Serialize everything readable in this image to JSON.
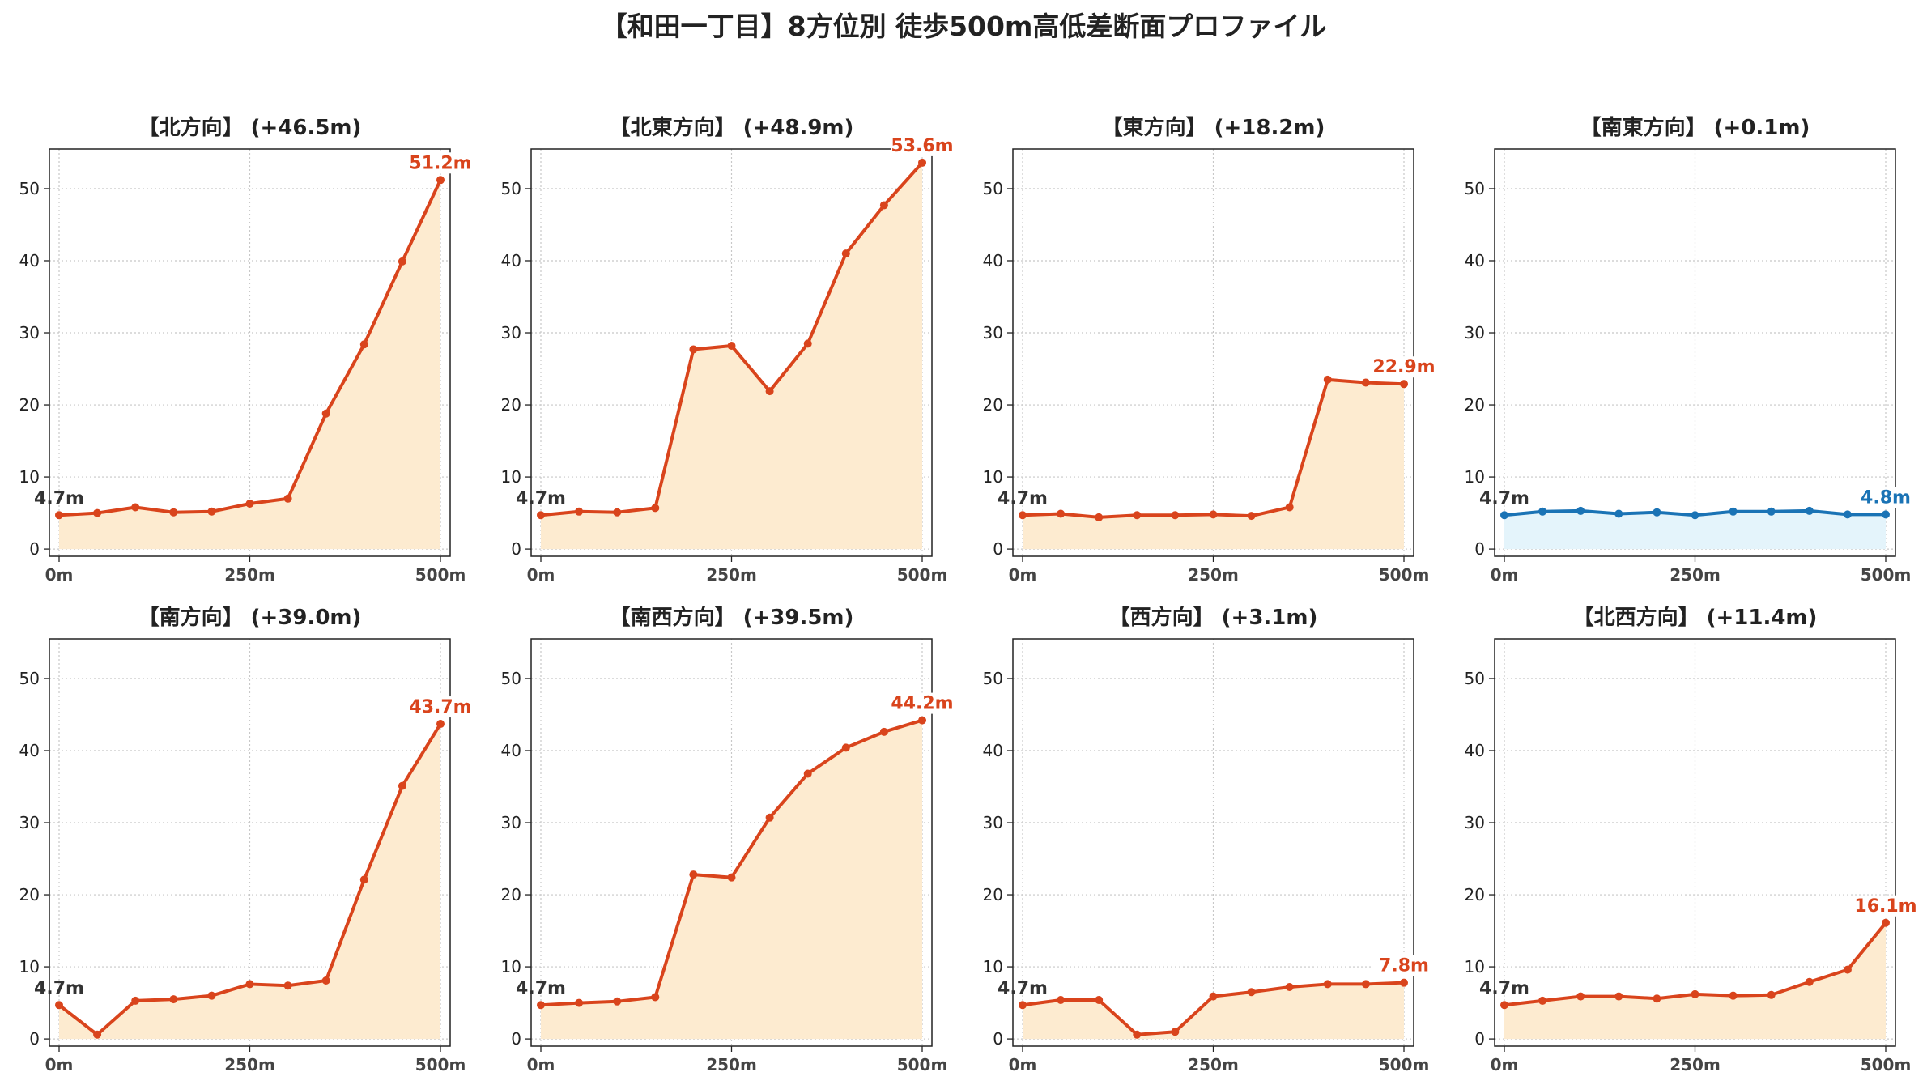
{
  "figure_title": "【和田一丁目】8方位別 徒歩500m高低差断面プロファイル",
  "colors": {
    "uphill_line": "#d9441c",
    "uphill_fill": "#fdebd0",
    "flat_line": "#1a73b5",
    "flat_fill": "#e4f4fb",
    "start_label": "#333333"
  },
  "chart_data": [
    {
      "type": "area",
      "title": "【北方向】 (+46.5m)",
      "x": [
        0,
        50,
        100,
        150,
        200,
        250,
        300,
        350,
        400,
        450,
        500
      ],
      "x_tick_labels": [
        "0m",
        "250m",
        "500m"
      ],
      "y_ticks": [
        0,
        10,
        20,
        30,
        40,
        50
      ],
      "ylim": [
        -1,
        55.5
      ],
      "grid": true,
      "style": "uphill",
      "values": [
        4.7,
        5.0,
        5.8,
        5.1,
        5.2,
        6.3,
        7.0,
        18.8,
        28.4,
        39.9,
        51.2
      ],
      "start_label": "4.7m",
      "end_label": "51.2m"
    },
    {
      "type": "area",
      "title": "【北東方向】 (+48.9m)",
      "x": [
        0,
        50,
        100,
        150,
        200,
        250,
        300,
        350,
        400,
        450,
        500
      ],
      "x_tick_labels": [
        "0m",
        "250m",
        "500m"
      ],
      "y_ticks": [
        0,
        10,
        20,
        30,
        40,
        50
      ],
      "ylim": [
        -1,
        55.5
      ],
      "grid": true,
      "style": "uphill",
      "values": [
        4.7,
        5.2,
        5.1,
        5.7,
        27.7,
        28.2,
        21.9,
        28.5,
        41.0,
        47.7,
        53.6
      ],
      "start_label": "4.7m",
      "end_label": "53.6m"
    },
    {
      "type": "area",
      "title": "【東方向】 (+18.2m)",
      "x": [
        0,
        50,
        100,
        150,
        200,
        250,
        300,
        350,
        400,
        450,
        500
      ],
      "x_tick_labels": [
        "0m",
        "250m",
        "500m"
      ],
      "y_ticks": [
        0,
        10,
        20,
        30,
        40,
        50
      ],
      "ylim": [
        -1,
        55.5
      ],
      "grid": true,
      "style": "uphill",
      "values": [
        4.7,
        4.9,
        4.4,
        4.7,
        4.7,
        4.8,
        4.6,
        5.8,
        23.5,
        23.1,
        22.9
      ],
      "start_label": "4.7m",
      "end_label": "22.9m"
    },
    {
      "type": "area",
      "title": "【南東方向】 (+0.1m)",
      "x": [
        0,
        50,
        100,
        150,
        200,
        250,
        300,
        350,
        400,
        450,
        500
      ],
      "x_tick_labels": [
        "0m",
        "250m",
        "500m"
      ],
      "y_ticks": [
        0,
        10,
        20,
        30,
        40,
        50
      ],
      "ylim": [
        -1,
        55.5
      ],
      "grid": true,
      "style": "flat",
      "values": [
        4.7,
        5.2,
        5.3,
        4.9,
        5.1,
        4.7,
        5.2,
        5.2,
        5.3,
        4.8,
        4.8
      ],
      "start_label": "4.7m",
      "end_label": "4.8m"
    },
    {
      "type": "area",
      "title": "【南方向】 (+39.0m)",
      "x": [
        0,
        50,
        100,
        150,
        200,
        250,
        300,
        350,
        400,
        450,
        500
      ],
      "x_tick_labels": [
        "0m",
        "250m",
        "500m"
      ],
      "y_ticks": [
        0,
        10,
        20,
        30,
        40,
        50
      ],
      "ylim": [
        -1,
        55.5
      ],
      "grid": true,
      "style": "uphill",
      "values": [
        4.7,
        0.6,
        5.3,
        5.5,
        6.0,
        7.6,
        7.4,
        8.1,
        22.1,
        35.1,
        43.7
      ],
      "start_label": "4.7m",
      "end_label": "43.7m"
    },
    {
      "type": "area",
      "title": "【南西方向】 (+39.5m)",
      "x": [
        0,
        50,
        100,
        150,
        200,
        250,
        300,
        350,
        400,
        450,
        500
      ],
      "x_tick_labels": [
        "0m",
        "250m",
        "500m"
      ],
      "y_ticks": [
        0,
        10,
        20,
        30,
        40,
        50
      ],
      "ylim": [
        -1,
        55.5
      ],
      "grid": true,
      "style": "uphill",
      "values": [
        4.7,
        5.0,
        5.2,
        5.8,
        22.8,
        22.4,
        30.7,
        36.8,
        40.4,
        42.6,
        44.2
      ],
      "start_label": "4.7m",
      "end_label": "44.2m"
    },
    {
      "type": "area",
      "title": "【西方向】 (+3.1m)",
      "x": [
        0,
        50,
        100,
        150,
        200,
        250,
        300,
        350,
        400,
        450,
        500
      ],
      "x_tick_labels": [
        "0m",
        "250m",
        "500m"
      ],
      "y_ticks": [
        0,
        10,
        20,
        30,
        40,
        50
      ],
      "ylim": [
        -1,
        55.5
      ],
      "grid": true,
      "style": "uphill",
      "values": [
        4.7,
        5.4,
        5.4,
        0.6,
        1.0,
        5.9,
        6.5,
        7.2,
        7.6,
        7.6,
        7.8
      ],
      "start_label": "4.7m",
      "end_label": "7.8m"
    },
    {
      "type": "area",
      "title": "【北西方向】 (+11.4m)",
      "x": [
        0,
        50,
        100,
        150,
        200,
        250,
        300,
        350,
        400,
        450,
        500
      ],
      "x_tick_labels": [
        "0m",
        "250m",
        "500m"
      ],
      "y_ticks": [
        0,
        10,
        20,
        30,
        40,
        50
      ],
      "ylim": [
        -1,
        55.5
      ],
      "grid": true,
      "style": "uphill",
      "values": [
        4.7,
        5.3,
        5.9,
        5.9,
        5.6,
        6.2,
        6.0,
        6.1,
        7.9,
        9.6,
        16.1
      ],
      "start_label": "4.7m",
      "end_label": "16.1m"
    }
  ]
}
